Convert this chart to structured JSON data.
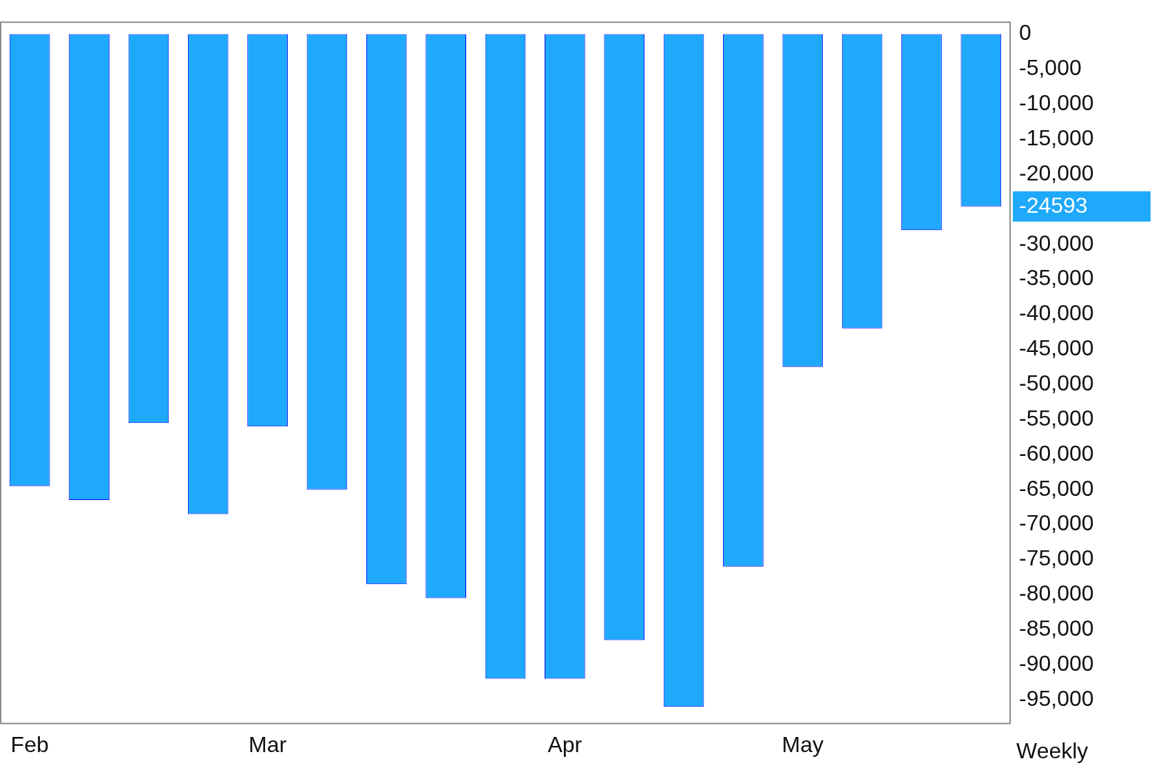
{
  "chart_data": {
    "type": "bar",
    "categories": [
      "Feb",
      null,
      null,
      null,
      "Mar",
      null,
      null,
      null,
      null,
      "Apr",
      null,
      null,
      null,
      "May",
      null,
      null,
      null
    ],
    "values": [
      -64500,
      -66500,
      -55500,
      -68500,
      -56000,
      -65000,
      -78500,
      -80500,
      -92000,
      -92000,
      -86500,
      -96000,
      -76000,
      -47500,
      -42000,
      -28000,
      -24593
    ],
    "color": "#1ea9fb",
    "ylim": [
      -98500,
      1800
    ],
    "yticks": [
      0,
      {
        "value": -5000,
        "label": "-5,000"
      },
      {
        "value": -10000,
        "label": "-10,000"
      },
      {
        "value": -15000,
        "label": "-15,000"
      },
      {
        "value": -20000,
        "label": "-20,000"
      },
      {
        "value": -24593,
        "label": "-24593"
      },
      {
        "value": -30000,
        "label": "-30,000"
      },
      {
        "value": -35000,
        "label": "-35,000"
      },
      {
        "value": -40000,
        "label": "-40,000"
      },
      {
        "value": -45000,
        "label": "-45,000"
      },
      {
        "value": -50000,
        "label": "-50,000"
      },
      {
        "value": -55000,
        "label": "-55,000"
      },
      {
        "value": -60000,
        "label": "-60,000"
      },
      {
        "value": -65000,
        "label": "-65,000"
      },
      {
        "value": -70000,
        "label": "-70,000"
      },
      {
        "value": -75000,
        "label": "-75,000"
      },
      {
        "value": -80000,
        "label": "-80,000"
      },
      {
        "value": -85000,
        "label": "-85,000"
      },
      {
        "value": -90000,
        "label": "-90,000"
      },
      {
        "value": -95000,
        "label": "-95,000"
      }
    ],
    "annotations": [
      "Weekly"
    ],
    "grid": false,
    "legend": false
  }
}
